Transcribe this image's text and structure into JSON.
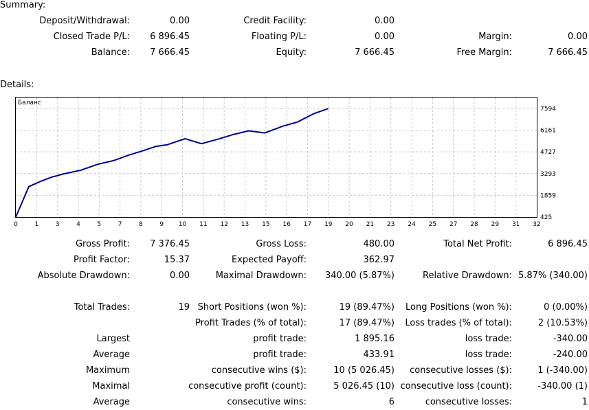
{
  "summary": {
    "title": "Summary:",
    "deposit_label": "Deposit/Withdrawal:",
    "deposit_value": "0.00",
    "credit_label": "Credit Facility:",
    "credit_value": "0.00",
    "closed_pl_label": "Closed Trade P/L:",
    "closed_pl_value": "6 896.45",
    "floating_pl_label": "Floating P/L:",
    "floating_pl_value": "0.00",
    "margin_label": "Margin:",
    "margin_value": "0.00",
    "balance_label": "Balance:",
    "balance_value": "7 666.45",
    "equity_label": "Equity:",
    "equity_value": "7 666.45",
    "free_margin_label": "Free Margin:",
    "free_margin_value": "7 666.45"
  },
  "details": {
    "title": "Details:"
  },
  "chart_data": {
    "type": "line",
    "legend": "Баланс",
    "x_ticks": [
      "0",
      "1",
      "3",
      "4",
      "5",
      "7",
      "8",
      "9",
      "10",
      "11",
      "12",
      "13",
      "15",
      "16",
      "17",
      "19",
      "20",
      "21",
      "23",
      "24",
      "25",
      "27",
      "28",
      "29",
      "31",
      "32"
    ],
    "y_ticks": [
      "7594",
      "6161",
      "4727",
      "3293",
      "1859",
      "425"
    ],
    "ylim": [
      425,
      7594
    ],
    "grid": true,
    "series": [
      {
        "color": "#00008b",
        "x": [
          0,
          0.8,
          1.5,
          2.2,
          3,
          4,
          5,
          6,
          6.9,
          7.8,
          8.6,
          9.3,
          10.4,
          11.4,
          12.4,
          13.4,
          14.3,
          15.3,
          16.4,
          17.3,
          18.3,
          19.2
        ],
        "y": [
          425,
          2430,
          2770,
          3060,
          3290,
          3520,
          3900,
          4150,
          4500,
          4800,
          5090,
          5200,
          5600,
          5270,
          5560,
          5890,
          6120,
          5980,
          6430,
          6700,
          7250,
          7590
        ]
      }
    ]
  },
  "stats": {
    "gross_profit_label": "Gross Profit:",
    "gross_profit_value": "7 376.45",
    "gross_loss_label": "Gross Loss:",
    "gross_loss_value": "480.00",
    "total_net_profit_label": "Total Net Profit:",
    "total_net_profit_value": "6 896.45",
    "profit_factor_label": "Profit Factor:",
    "profit_factor_value": "15.37",
    "expected_payoff_label": "Expected Payoff:",
    "expected_payoff_value": "362.97",
    "abs_drawdown_label": "Absolute Drawdown:",
    "abs_drawdown_value": "0.00",
    "max_drawdown_label": "Maximal Drawdown:",
    "max_drawdown_value": "340.00 (5.87%)",
    "rel_drawdown_label": "Relative Drawdown:",
    "rel_drawdown_value": "5.87% (340.00)",
    "total_trades_label": "Total Trades:",
    "total_trades_value": "19",
    "short_label": "Short Positions (won %):",
    "short_value": "19 (89.47%)",
    "long_label": "Long Positions (won %):",
    "long_value": "0 (0.00%)",
    "profit_trades_label": "Profit Trades (% of total):",
    "profit_trades_value": "17 (89.47%)",
    "loss_trades_label": "Loss trades (% of total):",
    "loss_trades_value": "2 (10.53%)",
    "largest_label": "Largest",
    "largest_profit_label": "profit trade:",
    "largest_profit_value": "1 895.16",
    "largest_loss_label": "loss trade:",
    "largest_loss_value": "-340.00",
    "average_label": "Average",
    "average_profit_label": "profit trade:",
    "average_profit_value": "433.91",
    "average_loss_label": "loss trade:",
    "average_loss_value": "-240.00",
    "maximum_label": "Maximum",
    "max_wins_label": "consecutive wins ($):",
    "max_wins_value": "10 (5 026.45)",
    "max_losses_label": "consecutive losses ($):",
    "max_losses_value": "1 (-340.00)",
    "maximal_label": "Maximal",
    "maximal_profit_label": "consecutive profit (count):",
    "maximal_profit_value": "5 026.45 (10)",
    "maximal_loss_label": "consecutive loss (count):",
    "maximal_loss_value": "-340.00 (1)",
    "average2_label": "Average",
    "avg_wins_label": "consecutive wins:",
    "avg_wins_value": "6",
    "avg_losses_label": "consecutive losses:",
    "avg_losses_value": "1"
  }
}
